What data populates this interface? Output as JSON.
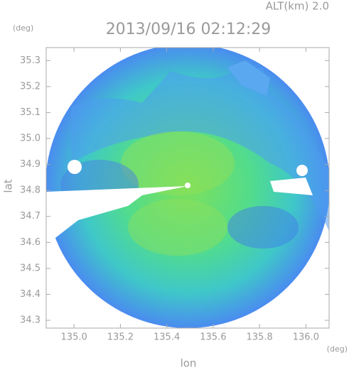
{
  "chart_data": {
    "type": "radar_map",
    "title": "2013/09/16 02:12:29",
    "altitude_label": "ALT(km) 2.0",
    "y_unit": "(deg)",
    "x_unit": "(deg)",
    "xlabel": "lon",
    "ylabel": "lat",
    "xlim": [
      134.88,
      136.1
    ],
    "ylim": [
      34.27,
      35.35
    ],
    "xticks": [
      {
        "value": 135.0,
        "label": "135.0"
      },
      {
        "value": 135.2,
        "label": "135.2"
      },
      {
        "value": 135.4,
        "label": "135.4"
      },
      {
        "value": 135.6,
        "label": "135.6"
      },
      {
        "value": 135.8,
        "label": "135.8"
      },
      {
        "value": 136.0,
        "label": "136.0"
      }
    ],
    "yticks": [
      {
        "value": 34.3,
        "label": "34.3"
      },
      34.4,
      34.5,
      34.6,
      34.7,
      34.8,
      34.9,
      {
        "value": 35.0,
        "label": "35.0"
      },
      35.1,
      35.2,
      35.3
    ]
  }
}
